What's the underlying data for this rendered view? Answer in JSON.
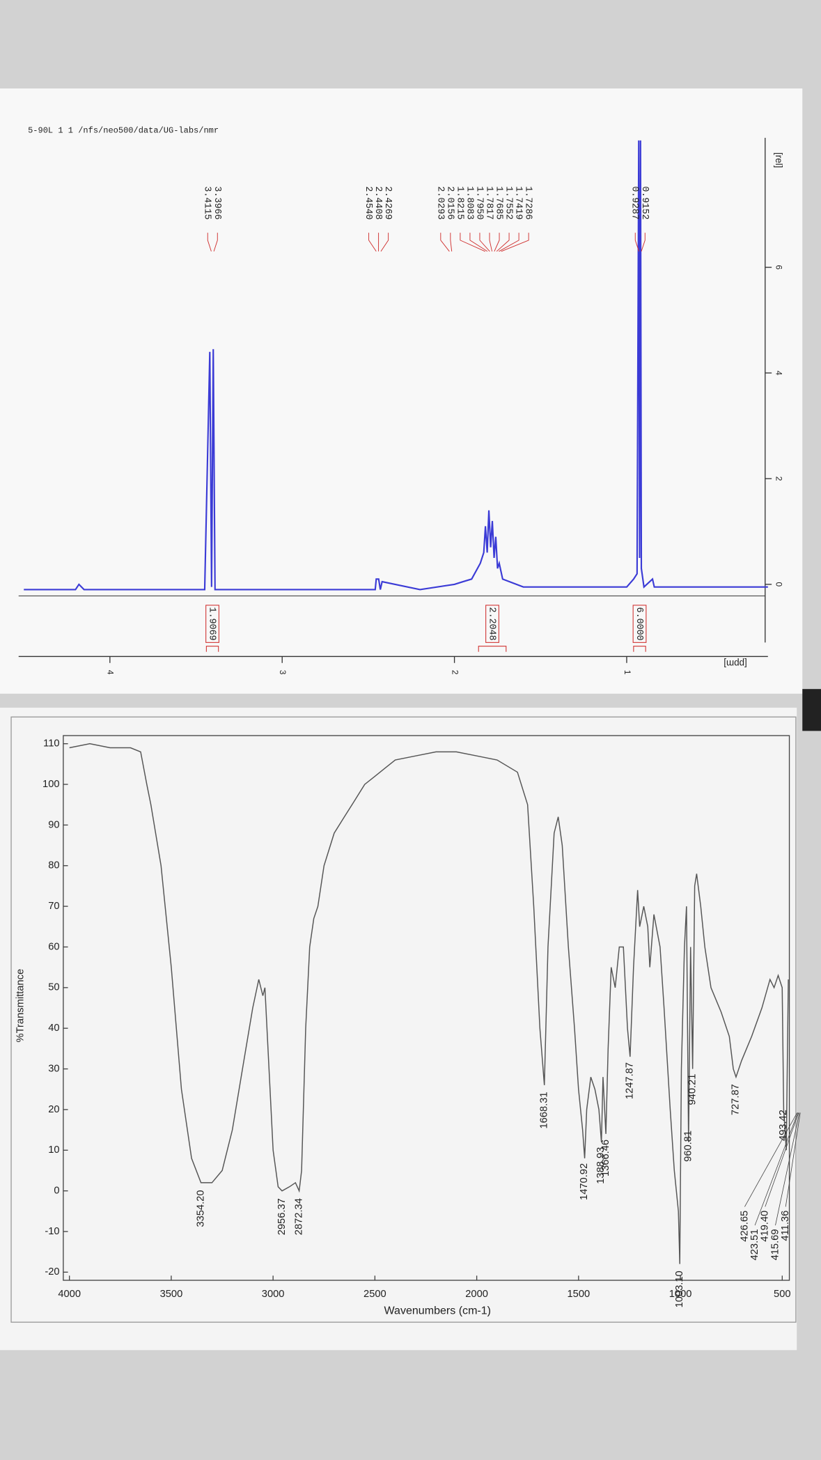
{
  "header": {
    "text": "5-90L 1 1 /nfs/neo500/data/UG-labs/nmr"
  },
  "chart_data": [
    {
      "type": "line",
      "x_label": "[ppm]",
      "y_label": "[rel]",
      "color": "#3b3bd6",
      "x": [
        4.5,
        4.2,
        4.18,
        4.15,
        3.45,
        3.42,
        3.41,
        3.4,
        3.39,
        3.3,
        2.46,
        2.454,
        2.44,
        2.43,
        2.42,
        2.2,
        2.0,
        1.95,
        1.9,
        1.85,
        1.83,
        1.82,
        1.81,
        1.8,
        1.79,
        1.78,
        1.77,
        1.76,
        1.75,
        1.74,
        1.72,
        1.6,
        1.0,
        0.96,
        0.94,
        0.93,
        0.925,
        0.92,
        0.915,
        0.9,
        0.85,
        0.84,
        0.18
      ],
      "values": [
        -0.1,
        -0.1,
        0.0,
        -0.1,
        -0.1,
        4.4,
        -0.05,
        4.45,
        -0.1,
        -0.1,
        -0.1,
        0.1,
        0.1,
        -0.1,
        0.05,
        -0.1,
        0.0,
        0.05,
        0.1,
        0.4,
        0.6,
        1.1,
        0.6,
        1.4,
        0.7,
        1.2,
        0.5,
        0.9,
        0.3,
        0.4,
        0.1,
        -0.05,
        -0.05,
        0.1,
        0.2,
        8.4,
        0.5,
        8.4,
        0.3,
        -0.05,
        0.1,
        -0.05,
        -0.05
      ],
      "xlim": [
        4.53,
        0.18
      ],
      "xticks": [
        4,
        3,
        2,
        1
      ],
      "ylim": [
        -1.1,
        8.45
      ],
      "yticks": [
        0,
        2,
        4,
        6
      ],
      "peak_labels": [
        [
          {
            "value": 3.4115,
            "label": "3.4115"
          },
          {
            "value": 3.3966,
            "label": "3.3966"
          }
        ],
        [
          {
            "value": 2.454,
            "label": "2.4540"
          },
          {
            "value": 2.4408,
            "label": "2.4408"
          },
          {
            "value": 2.4269,
            "label": "2.4269"
          }
        ],
        [
          {
            "value": 2.0293,
            "label": "2.0293"
          },
          {
            "value": 2.0156,
            "label": "2.0156"
          },
          {
            "value": 1.8215,
            "label": "1.8215"
          },
          {
            "value": 1.8083,
            "label": "1.8083"
          },
          {
            "value": 1.795,
            "label": "1.7950"
          },
          {
            "value": 1.7817,
            "label": "1.7817"
          },
          {
            "value": 1.7685,
            "label": "1.7685"
          },
          {
            "value": 1.7552,
            "label": "1.7552"
          },
          {
            "value": 1.7419,
            "label": "1.7419"
          },
          {
            "value": 1.7286,
            "label": "1.7286"
          }
        ],
        [
          {
            "value": 0.9287,
            "label": "0.9287"
          },
          {
            "value": 0.9152,
            "label": "0.9152"
          }
        ]
      ],
      "integrals": [
        {
          "from": 3.44,
          "to": 3.37,
          "value": 1.9069,
          "label": "1.9069"
        },
        {
          "from": 1.86,
          "to": 1.7,
          "value": 2.2048,
          "label": "2.2048"
        },
        {
          "from": 0.96,
          "to": 0.89,
          "value": 6,
          "label": "6.0000"
        }
      ]
    },
    {
      "type": "line",
      "x_label": "Wavenumbers (cm-1)",
      "y_label": "%Transmittance",
      "color": "#555555",
      "x": [
        4000,
        3900,
        3800,
        3700,
        3650,
        3620,
        3600,
        3550,
        3500,
        3450,
        3400,
        3354,
        3300,
        3250,
        3200,
        3150,
        3100,
        3070,
        3050,
        3040,
        3020,
        3000,
        2975,
        2956,
        2920,
        2890,
        2872,
        2860,
        2840,
        2820,
        2800,
        2780,
        2750,
        2700,
        2650,
        2600,
        2550,
        2500,
        2450,
        2400,
        2300,
        2200,
        2100,
        2000,
        1900,
        1800,
        1750,
        1720,
        1690,
        1668,
        1650,
        1620,
        1600,
        1580,
        1550,
        1520,
        1500,
        1480,
        1470,
        1460,
        1440,
        1420,
        1400,
        1388,
        1380,
        1366,
        1355,
        1340,
        1320,
        1300,
        1280,
        1260,
        1247,
        1230,
        1210,
        1200,
        1180,
        1160,
        1150,
        1130,
        1100,
        1080,
        1050,
        1030,
        1010,
        1003,
        995,
        980,
        970,
        960,
        950,
        940,
        930,
        920,
        900,
        880,
        850,
        800,
        760,
        740,
        727,
        700,
        650,
        600,
        560,
        540,
        520,
        500,
        493,
        480,
        470
      ],
      "values": [
        109,
        110,
        109,
        109,
        108,
        100,
        95,
        80,
        55,
        25,
        8,
        2,
        2,
        5,
        15,
        30,
        45,
        52,
        48,
        50,
        30,
        10,
        1,
        0,
        1,
        2,
        0,
        5,
        40,
        60,
        67,
        70,
        80,
        88,
        92,
        96,
        100,
        102,
        104,
        106,
        107,
        108,
        108,
        107,
        106,
        103,
        95,
        70,
        40,
        26,
        60,
        88,
        92,
        85,
        60,
        40,
        25,
        15,
        8,
        20,
        28,
        25,
        20,
        12,
        28,
        14,
        35,
        55,
        50,
        60,
        60,
        40,
        33,
        55,
        74,
        65,
        70,
        65,
        55,
        68,
        60,
        45,
        20,
        5,
        -5,
        -18,
        30,
        60,
        70,
        12,
        60,
        30,
        75,
        78,
        70,
        60,
        50,
        44,
        38,
        30,
        28,
        32,
        38,
        45,
        52,
        50,
        53,
        50,
        20,
        10,
        52
      ],
      "xlim": [
        4030,
        465
      ],
      "xticks": [
        4000,
        3500,
        3000,
        2500,
        2000,
        1500,
        1000,
        500
      ],
      "ylim": [
        -22,
        112
      ],
      "yticks": [
        -20,
        -10,
        0,
        10,
        20,
        30,
        40,
        50,
        60,
        70,
        80,
        90,
        100,
        110
      ],
      "peaks": [
        {
          "value": 3354.2,
          "label": "3354.20"
        },
        {
          "value": 2956.37,
          "label": "2956.37"
        },
        {
          "value": 2872.34,
          "label": "2872.34"
        },
        {
          "value": 1668.31,
          "label": "1668.31"
        },
        {
          "value": 1470.92,
          "label": "1470.92"
        },
        {
          "value": 1388.93,
          "label": "1388.93"
        },
        {
          "value": 1366.46,
          "label": "1366.46"
        },
        {
          "value": 1247.87,
          "label": "1247.87"
        },
        {
          "value": 1003.1,
          "label": "1003.10"
        },
        {
          "value": 960.81,
          "label": "960.81"
        },
        {
          "value": 940.21,
          "label": "940.21"
        },
        {
          "value": 727.87,
          "label": "727.87"
        },
        {
          "value": 426.65,
          "label": "426.65"
        },
        {
          "value": 423.51,
          "label": "423.51"
        },
        {
          "value": 419.4,
          "label": "419.40"
        },
        {
          "value": 415.69,
          "label": "415.69"
        },
        {
          "value": 411.36,
          "label": "411.36"
        },
        {
          "value": 493.42,
          "label": "493.42"
        }
      ]
    }
  ]
}
